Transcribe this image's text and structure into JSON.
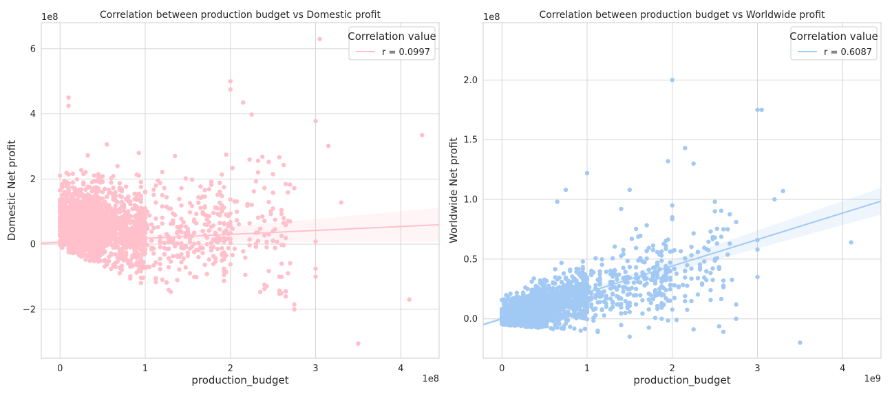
{
  "chart_data": [
    {
      "type": "scatter",
      "title": "Correlation between production budget vs Domestic profit",
      "xlabel": "production_budget",
      "ylabel": "Domestic Net profit",
      "x_offset_label": "1e8",
      "y_offset_label": "1e8",
      "xlim": [
        -0.22,
        4.45
      ],
      "ylim": [
        -3.5,
        6.8
      ],
      "xticks": [
        0,
        1,
        2,
        3,
        4
      ],
      "yticks": [
        -2,
        0,
        2,
        4,
        6
      ],
      "ytick_labels": [
        "−2",
        "0",
        "2",
        "4",
        "6"
      ],
      "grid": true,
      "color": "#ffc0cb",
      "legend": {
        "title": "Correlation value",
        "entry": "r = 0.0997",
        "placement": "upper right"
      },
      "regression": {
        "slope": 0.1205,
        "intercept": 0.06,
        "ci_halfwidth_at_mean": 0.06,
        "ci_growth": 0.12
      },
      "highlighted_points": [
        [
          3.05,
          6.3
        ],
        [
          0.1,
          4.5
        ],
        [
          0.1,
          4.25
        ],
        [
          2.0,
          5.0
        ],
        [
          2.0,
          4.75
        ],
        [
          2.15,
          4.35
        ],
        [
          2.25,
          3.98
        ],
        [
          3.0,
          3.78
        ],
        [
          3.15,
          3.02
        ],
        [
          3.3,
          1.28
        ],
        [
          4.25,
          3.35
        ],
        [
          4.1,
          -1.7
        ],
        [
          3.5,
          -3.05
        ],
        [
          2.75,
          -1.85
        ],
        [
          2.75,
          -2.0
        ],
        [
          3.0,
          -0.75
        ],
        [
          3.0,
          -1.0
        ],
        [
          3.0,
          0.08
        ],
        [
          2.75,
          1.72
        ],
        [
          2.5,
          1.58
        ],
        [
          2.5,
          0.4
        ],
        [
          2.5,
          0.1
        ],
        [
          2.6,
          -0.6
        ]
      ]
    },
    {
      "type": "scatter",
      "title": "Correlation between production budget vs Worldwide profit",
      "xlabel": "production_budget",
      "ylabel": "Worldwide Net profit",
      "x_offset_label": "1e9",
      "y_offset_label": "1e8",
      "xlim": [
        -0.22,
        4.45
      ],
      "ylim": [
        -0.33,
        2.48
      ],
      "xticks": [
        0,
        1,
        2,
        3,
        4
      ],
      "yticks": [
        0.0,
        0.5,
        1.0,
        1.5,
        2.0
      ],
      "ytick_labels": [
        "0.0",
        "0.5",
        "1.0",
        "1.5",
        "2.0"
      ],
      "grid": true,
      "color": "#a1c9f4",
      "legend": {
        "title": "Correlation value",
        "entry": "r = 0.6087",
        "placement": "upper right"
      },
      "regression": {
        "slope": 0.2213,
        "intercept": -0.0,
        "ci_halfwidth_at_mean": 0.015,
        "ci_growth": 0.025
      },
      "highlighted_points": [
        [
          2.0,
          2.0
        ],
        [
          3.0,
          1.75
        ],
        [
          3.05,
          1.75
        ],
        [
          2.15,
          1.43
        ],
        [
          2.25,
          1.3
        ],
        [
          1.0,
          1.22
        ],
        [
          1.95,
          1.32
        ],
        [
          3.3,
          1.07
        ],
        [
          3.2,
          1.0
        ],
        [
          4.1,
          0.64
        ],
        [
          3.5,
          -0.2
        ],
        [
          2.75,
          0.81
        ],
        [
          2.75,
          0.12
        ],
        [
          2.75,
          0.0
        ],
        [
          3.0,
          0.58
        ],
        [
          3.0,
          0.35
        ],
        [
          3.0,
          0.66
        ],
        [
          2.6,
          0.32
        ],
        [
          2.0,
          0.95
        ],
        [
          2.0,
          0.85
        ],
        [
          2.5,
          0.98
        ],
        [
          2.5,
          0.9
        ],
        [
          1.5,
          1.08
        ],
        [
          1.4,
          0.92
        ],
        [
          0.65,
          0.98
        ],
        [
          0.75,
          1.08
        ],
        [
          1.5,
          -0.15
        ]
      ]
    }
  ]
}
